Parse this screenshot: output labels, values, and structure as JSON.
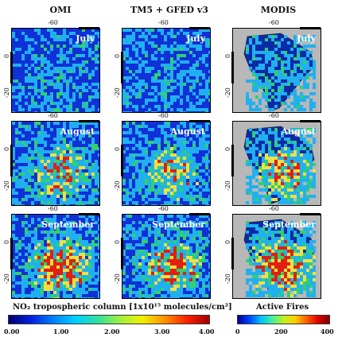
{
  "columns": [
    "OMI",
    "TM5 + GFED v3",
    "MODIS"
  ],
  "months": [
    "July",
    "August",
    "September"
  ],
  "tick_labels": {
    "lon": "-60",
    "lat_0": "0",
    "lat_20": "-20"
  },
  "colorbar_no2": {
    "title": "NO₂ tropospheric column [1x10¹⁵ molecules/cm²]",
    "ticks": [
      "0.00",
      "1.00",
      "2.00",
      "3.00",
      "4.00"
    ]
  },
  "colorbar_fires": {
    "title": "Active Fires",
    "ticks": [
      "0",
      "200",
      "400"
    ]
  },
  "colors": {
    "low": "#1030d8",
    "mid": "#20b0f0",
    "green": "#30d070",
    "yellow": "#f0e040",
    "red": "#e02010",
    "gray": "#b8b8b8"
  }
}
